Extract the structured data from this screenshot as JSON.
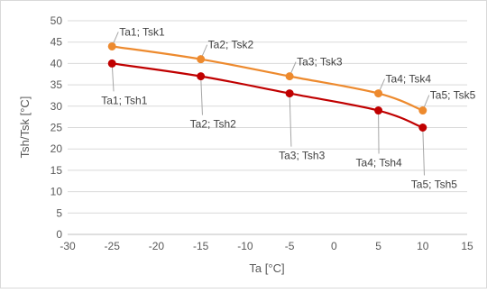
{
  "chart_data": {
    "type": "line",
    "xlabel": "Ta [°C]",
    "ylabel": "Tsh/Tsk [°C]",
    "xlim": [
      -30,
      15
    ],
    "ylim": [
      0,
      50
    ],
    "x_ticks": [
      -30,
      -25,
      -20,
      -15,
      -10,
      -5,
      0,
      5,
      10,
      15
    ],
    "y_ticks": [
      0,
      5,
      10,
      15,
      20,
      25,
      30,
      35,
      40,
      45,
      50
    ],
    "grid": "horizontal",
    "legend": "none",
    "series": [
      {
        "color": "#ED8A2E",
        "points": [
          {
            "x": -25,
            "y": 44,
            "label": "Ta1; Tsk1"
          },
          {
            "x": -15,
            "y": 41,
            "label": "Ta2; Tsk2"
          },
          {
            "x": -5,
            "y": 37,
            "label": "Ta3; Tsk3"
          },
          {
            "x": 5,
            "y": 33,
            "label": "Ta4; Tsk4"
          },
          {
            "x": 10,
            "y": 29,
            "label": "Ta5; Tsk5"
          }
        ]
      },
      {
        "color": "#C00000",
        "points": [
          {
            "x": -25,
            "y": 40,
            "label": "Ta1; Tsh1"
          },
          {
            "x": -15,
            "y": 37,
            "label": "Ta2; Tsh2"
          },
          {
            "x": -5,
            "y": 33,
            "label": "Ta3; Tsh3"
          },
          {
            "x": 5,
            "y": 29,
            "label": "Ta4; Tsh4"
          },
          {
            "x": 10,
            "y": 25,
            "label": "Ta5; Tsh5"
          }
        ]
      }
    ],
    "colors": {
      "grid": "#D9D9D9",
      "axis": "#BFBFBF",
      "leader": "#A6A6A6"
    }
  }
}
